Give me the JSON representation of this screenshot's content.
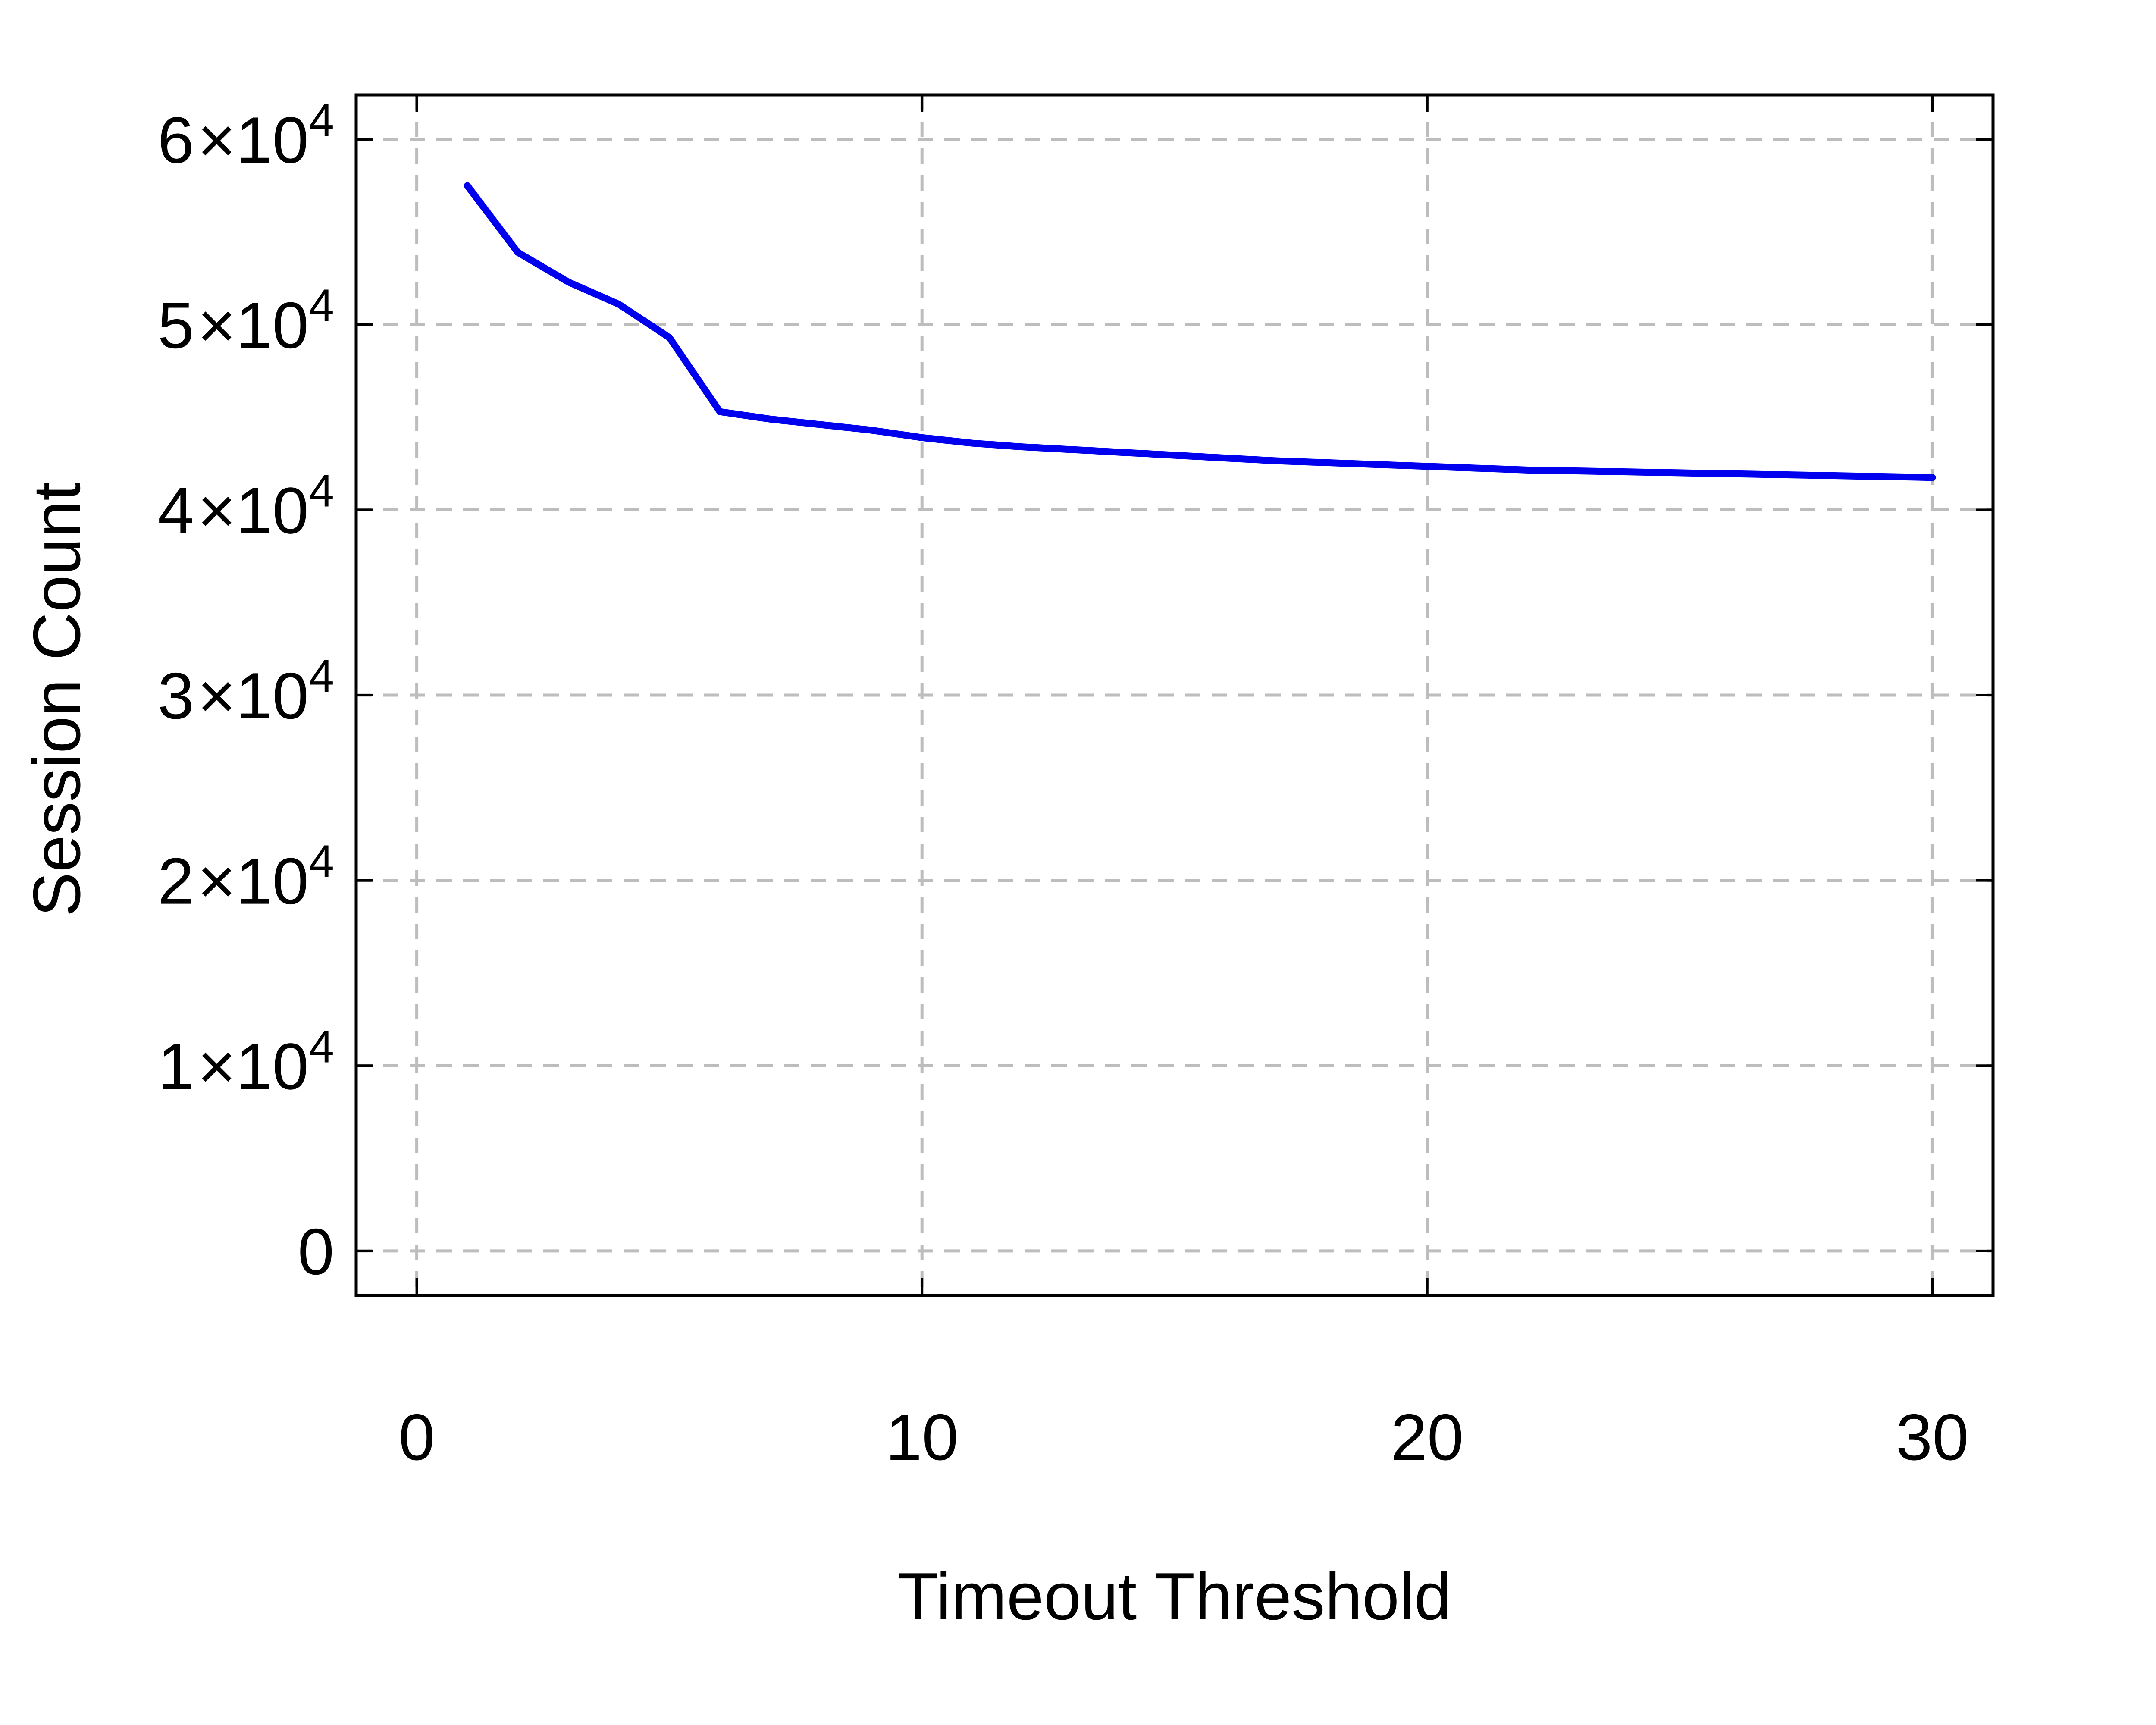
{
  "chart_data": {
    "type": "line",
    "title": "",
    "xlabel": "Timeout Threshold",
    "ylabel": "Session Count",
    "xlim": [
      -1.2,
      31.2
    ],
    "ylim": [
      -2400,
      62400
    ],
    "xticks": [
      0,
      10,
      20,
      30
    ],
    "xtick_labels": [
      "0",
      "10",
      "20",
      "30"
    ],
    "yticks": [
      0,
      10000,
      20000,
      30000,
      40000,
      50000,
      60000
    ],
    "ytick_labels": [
      {
        "mantissa": "0",
        "exponent": ""
      },
      {
        "mantissa": "1",
        "exponent": "4"
      },
      {
        "mantissa": "2",
        "exponent": "4"
      },
      {
        "mantissa": "3",
        "exponent": "4"
      },
      {
        "mantissa": "4",
        "exponent": "4"
      },
      {
        "mantissa": "5",
        "exponent": "4"
      },
      {
        "mantissa": "6",
        "exponent": "4"
      }
    ],
    "grid": true,
    "legend": "none",
    "series": [
      {
        "color": "#0000ee",
        "x": [
          1,
          2,
          3,
          4,
          5,
          6,
          7,
          8,
          9,
          10,
          11,
          12,
          13,
          14,
          15,
          16,
          17,
          18,
          19,
          20,
          21,
          22,
          23,
          24,
          25,
          26,
          27,
          28,
          29,
          30
        ],
        "y": [
          57500,
          53900,
          52300,
          51100,
          49300,
          45300,
          44900,
          44600,
          44300,
          43900,
          43600,
          43400,
          43250,
          43100,
          42950,
          42800,
          42650,
          42550,
          42450,
          42350,
          42250,
          42150,
          42100,
          42050,
          42000,
          41950,
          41900,
          41850,
          41800,
          41750
        ]
      }
    ]
  },
  "colors": {
    "grid": "#bdbdbd",
    "frame": "#000000",
    "line": "#0000ee"
  }
}
